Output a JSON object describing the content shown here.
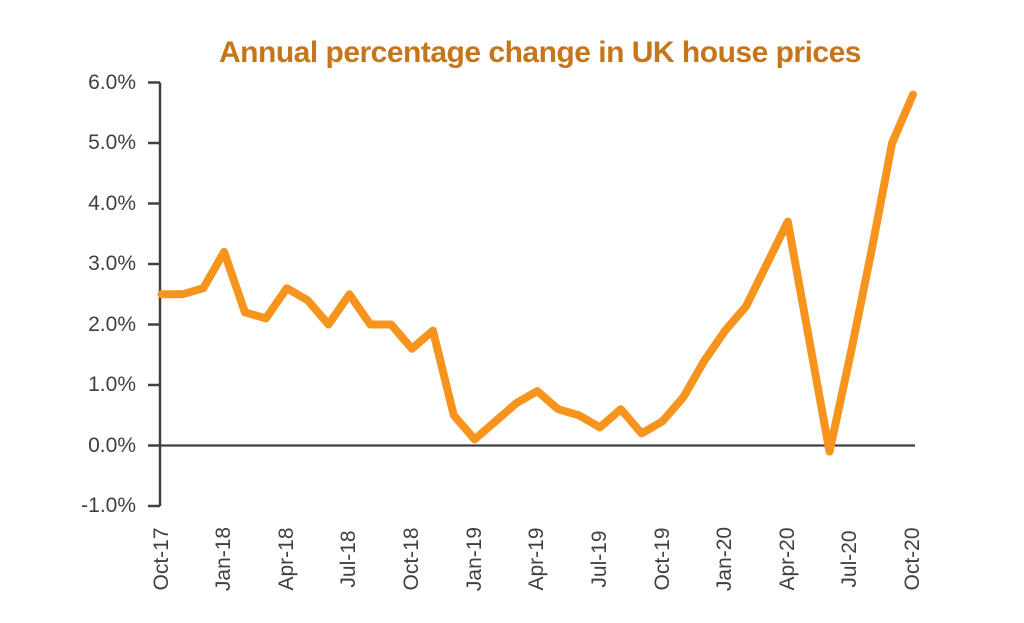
{
  "chart": {
    "title": "Annual percentage change in UK house prices"
  },
  "chart_data": {
    "type": "line",
    "title": "Annual percentage change in UK house prices",
    "series_name": "Annual % change in UK house prices",
    "x": [
      "Oct-17",
      "Nov-17",
      "Dec-17",
      "Jan-18",
      "Feb-18",
      "Mar-18",
      "Apr-18",
      "May-18",
      "Jun-18",
      "Jul-18",
      "Aug-18",
      "Sep-18",
      "Oct-18",
      "Nov-18",
      "Dec-18",
      "Jan-19",
      "Feb-19",
      "Mar-19",
      "Apr-19",
      "May-19",
      "Jun-19",
      "Jul-19",
      "Aug-19",
      "Sep-19",
      "Oct-19",
      "Nov-19",
      "Dec-19",
      "Jan-20",
      "Feb-20",
      "Mar-20",
      "Apr-20",
      "May-20",
      "Jun-20",
      "Jul-20",
      "Aug-20",
      "Sep-20",
      "Oct-20"
    ],
    "values": [
      2.5,
      2.5,
      2.6,
      3.2,
      2.2,
      2.1,
      2.6,
      2.4,
      2.0,
      2.5,
      2.0,
      2.0,
      1.6,
      1.9,
      0.5,
      0.1,
      0.4,
      0.7,
      0.9,
      0.6,
      0.5,
      0.3,
      0.6,
      0.2,
      0.4,
      0.8,
      1.4,
      1.9,
      2.3,
      3.0,
      3.7,
      1.8,
      -0.1,
      1.5,
      3.2,
      5.0,
      5.8
    ],
    "x_tick_labels": [
      "Oct-17",
      "Jan-18",
      "Apr-18",
      "Jul-18",
      "Oct-18",
      "Jan-19",
      "Apr-19",
      "Jul-19",
      "Oct-19",
      "Jan-20",
      "Apr-20",
      "Jul-20",
      "Oct-20"
    ],
    "x_tick_every_n_months": 3,
    "y_tick_labels": [
      "6.0%",
      "5.0%",
      "4.0%",
      "3.0%",
      "2.0%",
      "1.0%",
      "0.0%",
      "-1.0%"
    ],
    "y_tick_values": [
      6,
      5,
      4,
      3,
      2,
      1,
      0,
      -1
    ],
    "ylim": [
      -1,
      6
    ],
    "grid": false,
    "legend": "none",
    "x_tick_label_rotation": "vertical",
    "colors": {
      "line": "#F7941E",
      "title": "#C5761B",
      "axis": "#404040",
      "tick_label": "#404040"
    }
  }
}
